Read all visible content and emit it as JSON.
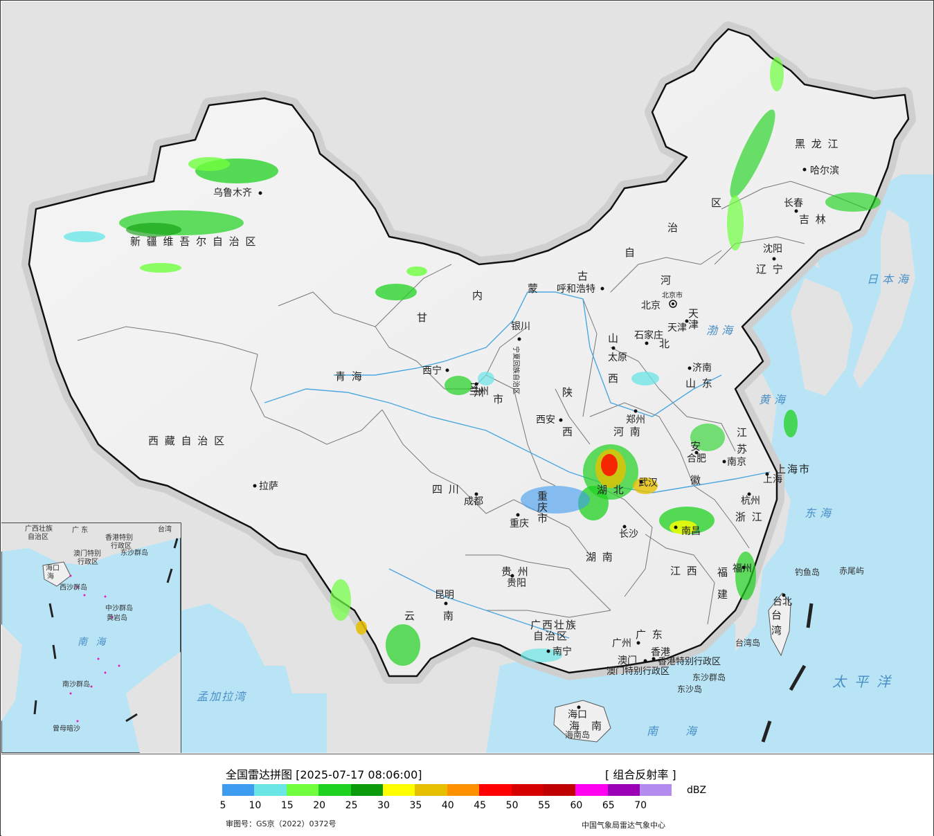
{
  "map": {
    "province_labels": [
      {
        "text": "新 疆 维 吾 尔 自 治 区"
      },
      {
        "text": "西 藏 自 治 区"
      },
      {
        "text": "青  海"
      },
      {
        "text": "甘"
      },
      {
        "text": "内"
      },
      {
        "text": "蒙"
      },
      {
        "text": "古"
      },
      {
        "text": "自"
      },
      {
        "text": "治"
      },
      {
        "text": "区"
      },
      {
        "text": "黑 龙 江"
      },
      {
        "text": "吉 林"
      },
      {
        "text": "辽 宁"
      },
      {
        "text": "河"
      },
      {
        "text": "北"
      },
      {
        "text": "山"
      },
      {
        "text": "西"
      },
      {
        "text": "山 东"
      },
      {
        "text": "河 南"
      },
      {
        "text": "陕"
      },
      {
        "text": "西"
      },
      {
        "text": "四 川"
      },
      {
        "text": "湖 北"
      },
      {
        "text": "湖 南"
      },
      {
        "text": "江 西"
      },
      {
        "text": "安"
      },
      {
        "text": "徽"
      },
      {
        "text": "江"
      },
      {
        "text": "苏"
      },
      {
        "text": "浙 江"
      },
      {
        "text": "福"
      },
      {
        "text": "建"
      },
      {
        "text": "贵 州"
      },
      {
        "text": "云"
      },
      {
        "text": "南"
      },
      {
        "text": "广西壮族"
      },
      {
        "text": "自治区"
      },
      {
        "text": "广 东"
      },
      {
        "text": "海"
      },
      {
        "text": "南"
      },
      {
        "text": "台"
      },
      {
        "text": "湾"
      },
      {
        "text": "上海市"
      },
      {
        "text": "重"
      },
      {
        "text": "庆"
      },
      {
        "text": "市"
      },
      {
        "text": "三"
      },
      {
        "text": "州"
      },
      {
        "text": "市"
      },
      {
        "text": "天"
      },
      {
        "text": "津"
      },
      {
        "text": "北京市"
      },
      {
        "text": "香港特别行政区"
      },
      {
        "text": "澳门特别行政区"
      },
      {
        "text": "宁夏回族自治区"
      }
    ],
    "cities": [
      {
        "text": "乌鲁木齐"
      },
      {
        "text": "拉萨"
      },
      {
        "text": "西宁"
      },
      {
        "text": "兰州"
      },
      {
        "text": "银川"
      },
      {
        "text": "呼和浩特"
      },
      {
        "text": "北京"
      },
      {
        "text": "天津"
      },
      {
        "text": "石家庄"
      },
      {
        "text": "太原"
      },
      {
        "text": "济南"
      },
      {
        "text": "郑州"
      },
      {
        "text": "西安"
      },
      {
        "text": "成都"
      },
      {
        "text": "重庆"
      },
      {
        "text": "武汉"
      },
      {
        "text": "长沙"
      },
      {
        "text": "南昌"
      },
      {
        "text": "合肥"
      },
      {
        "text": "南京"
      },
      {
        "text": "上海"
      },
      {
        "text": "杭州"
      },
      {
        "text": "福州"
      },
      {
        "text": "台北"
      },
      {
        "text": "贵阳"
      },
      {
        "text": "昆明"
      },
      {
        "text": "南宁"
      },
      {
        "text": "广州"
      },
      {
        "text": "澳门"
      },
      {
        "text": "香港"
      },
      {
        "text": "海口"
      },
      {
        "text": "哈尔滨"
      },
      {
        "text": "长春"
      },
      {
        "text": "沈阳"
      }
    ],
    "seas": [
      {
        "text": "日本海"
      },
      {
        "text": "渤海"
      },
      {
        "text": "黄海"
      },
      {
        "text": "东海"
      },
      {
        "text": "太平洋"
      },
      {
        "text": "南海"
      },
      {
        "text": "孟加拉湾"
      }
    ],
    "islands": [
      {
        "text": "钓鱼岛"
      },
      {
        "text": "赤尾屿"
      },
      {
        "text": "台湾岛"
      },
      {
        "text": "东沙群岛"
      },
      {
        "text": "东沙岛"
      },
      {
        "text": "海南岛"
      }
    ],
    "inset_labels": [
      {
        "text": "广西壮族"
      },
      {
        "text": "自治区"
      },
      {
        "text": "广 东"
      },
      {
        "text": "香港特别"
      },
      {
        "text": "行政区"
      },
      {
        "text": "澳门特别"
      },
      {
        "text": "行政区"
      },
      {
        "text": "东沙群岛"
      },
      {
        "text": "海口"
      },
      {
        "text": "海"
      },
      {
        "text": "西沙群岛"
      },
      {
        "text": "中沙群岛"
      },
      {
        "text": "黄岩岛"
      },
      {
        "text": "南 海"
      },
      {
        "text": "南沙群岛"
      },
      {
        "text": "曾母暗沙"
      },
      {
        "text": "台湾"
      }
    ]
  },
  "legend": {
    "title": "全国雷达拼图 [2025-07-17 08:06:00]",
    "product": "[ 组合反射率 ]",
    "units": "dBZ",
    "colors": [
      "#3d9bf0",
      "#6be6e6",
      "#6fff3f",
      "#1fd21f",
      "#0a9a0a",
      "#ffff00",
      "#e6c000",
      "#ff9000",
      "#ff0000",
      "#d70000",
      "#c00000",
      "#ff00f0",
      "#9a00b4",
      "#b48cf0"
    ],
    "ticks": [
      "5",
      "10",
      "15",
      "20",
      "25",
      "30",
      "35",
      "40",
      "45",
      "50",
      "55",
      "60",
      "65",
      "70"
    ],
    "approval_number": "审图号：GS京（2022）0372号",
    "credit": "中国气象局雷达气象中心"
  }
}
